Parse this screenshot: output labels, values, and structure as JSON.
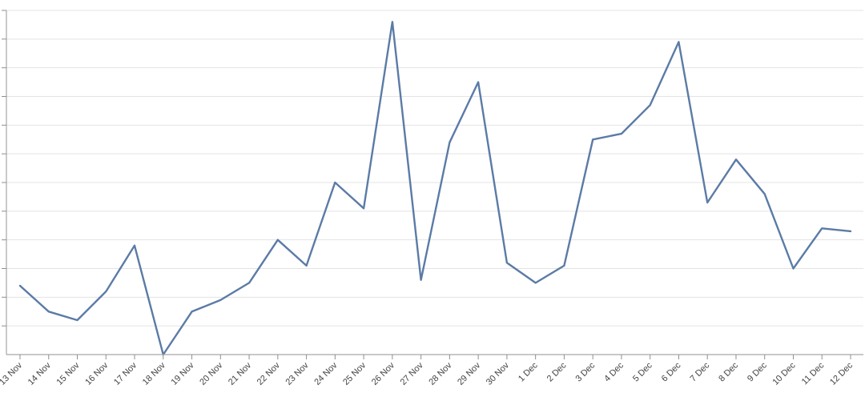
{
  "chart_data": {
    "type": "line",
    "x": [
      "13 Nov",
      "14 Nov",
      "15 Nov",
      "16 Nov",
      "17 Nov",
      "18 Nov",
      "19 Nov",
      "20 Nov",
      "21 Nov",
      "22 Nov",
      "23 Nov",
      "24 Nov",
      "25 Nov",
      "26 Nov",
      "27 Nov",
      "28 Nov",
      "29 Nov",
      "30 Nov",
      "1 Dec",
      "2 Dec",
      "3 Dec",
      "4 Dec",
      "5 Dec",
      "6 Dec",
      "7 Dec",
      "8 Dec",
      "9 Dec",
      "10 Dec",
      "11 Dec",
      "12 Dec"
    ],
    "series": [
      {
        "color": "#5b7ba6",
        "values": [
          2.4,
          1.5,
          1.2,
          2.2,
          3.8,
          0.0,
          1.5,
          1.9,
          2.5,
          4.0,
          3.1,
          6.0,
          5.1,
          11.6,
          2.6,
          7.4,
          9.5,
          3.2,
          2.5,
          3.1,
          7.5,
          7.7,
          8.7,
          10.9,
          5.3,
          6.8,
          5.6,
          3.0,
          4.4,
          4.3
        ]
      }
    ],
    "ylim": [
      0,
      12
    ],
    "grid": true,
    "legend": "none",
    "title": "",
    "xlabel": "",
    "ylabel": ""
  }
}
